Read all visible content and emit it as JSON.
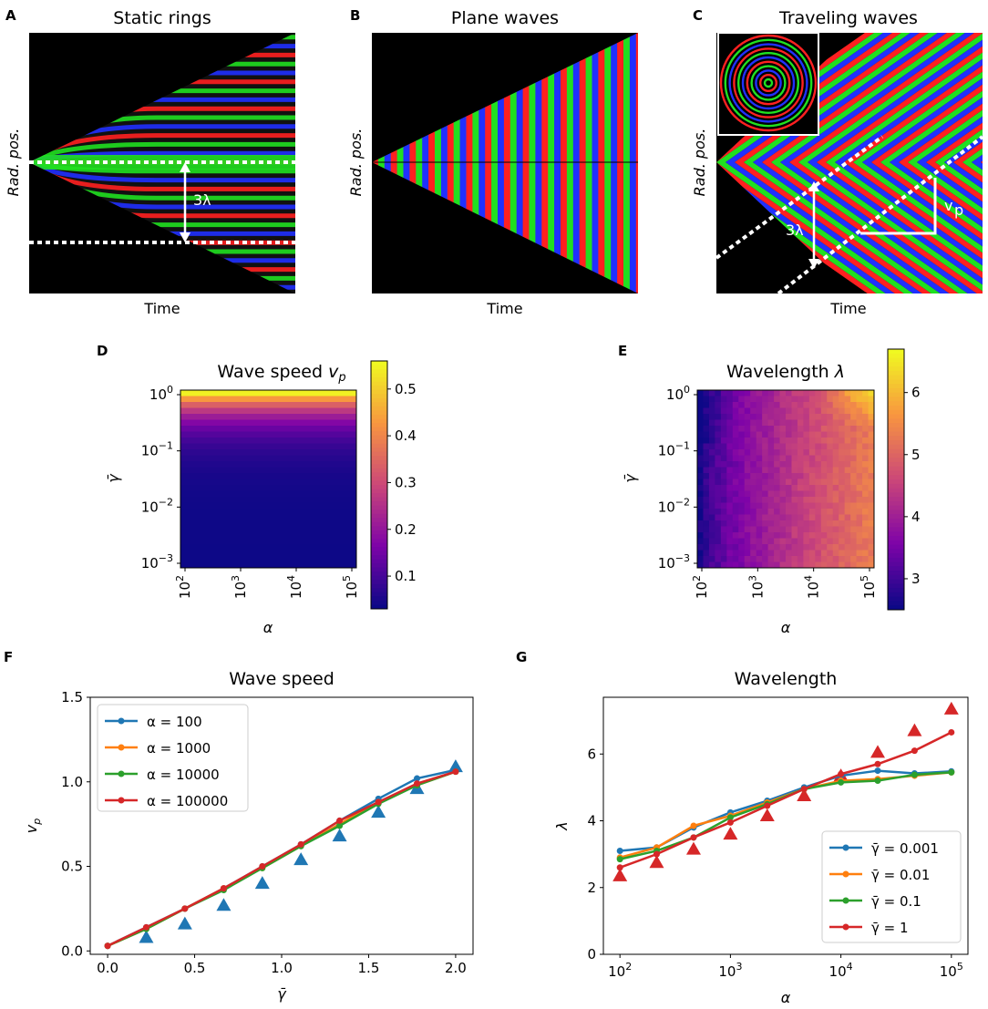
{
  "panel_letters": [
    "A",
    "B",
    "C",
    "D",
    "E",
    "F",
    "G"
  ],
  "colors": {
    "red": "#ff2020",
    "green": "#20e020",
    "blue": "#2030ff",
    "series": [
      "#1f77b4",
      "#ff7f0e",
      "#2ca02c",
      "#d62728"
    ],
    "triangle_f": "#1f77b4",
    "triangle_g": "#d62728"
  },
  "chart_data": [
    {
      "id": "A",
      "type": "heatmap",
      "title": "Static rings",
      "xlabel": "Time",
      "ylabel": "Rad. pos.",
      "annotations": [
        "3λ"
      ]
    },
    {
      "id": "B",
      "type": "heatmap",
      "title": "Plane waves",
      "xlabel": "Time",
      "ylabel": "Rad. pos."
    },
    {
      "id": "C",
      "type": "heatmap",
      "title": "Traveling waves",
      "xlabel": "Time",
      "ylabel": "Rad. pos.",
      "annotations": [
        "3λ",
        "v",
        "p"
      ]
    },
    {
      "id": "D",
      "type": "heatmap",
      "title_main": "Wave speed ",
      "title_sym": "v",
      "title_sub": "p",
      "xlabel": "α",
      "ylabel": "γ̄",
      "xticks": [
        {
          "b": "10",
          "e": "2"
        },
        {
          "b": "10",
          "e": "3"
        },
        {
          "b": "10",
          "e": "4"
        },
        {
          "b": "10",
          "e": "5"
        }
      ],
      "yticks": [
        {
          "b": "10",
          "e": "0"
        },
        {
          "b": "10",
          "e": "−1"
        },
        {
          "b": "10",
          "e": "−2"
        },
        {
          "b": "10",
          "e": "−3"
        }
      ],
      "colorbar_ticks": [
        "0.1",
        "0.2",
        "0.3",
        "0.4",
        "0.5"
      ],
      "colorbar_range": [
        0.03,
        0.56
      ]
    },
    {
      "id": "E",
      "type": "heatmap",
      "title_main": "Wavelength ",
      "title_sym": "λ",
      "xlabel": "α",
      "ylabel": "γ̄",
      "xticks": [
        {
          "b": "10",
          "e": "2"
        },
        {
          "b": "10",
          "e": "3"
        },
        {
          "b": "10",
          "e": "4"
        },
        {
          "b": "10",
          "e": "5"
        }
      ],
      "yticks": [
        {
          "b": "10",
          "e": "0"
        },
        {
          "b": "10",
          "e": "−1"
        },
        {
          "b": "10",
          "e": "−2"
        },
        {
          "b": "10",
          "e": "−3"
        }
      ],
      "colorbar_ticks": [
        "3",
        "4",
        "5",
        "6"
      ],
      "colorbar_range": [
        2.5,
        6.7
      ]
    },
    {
      "id": "F",
      "type": "line",
      "title": "Wave speed",
      "xlabel": "γ̄",
      "ylabel_sym": "v",
      "ylabel_sub": "p",
      "xlim": [
        -0.1,
        2.1
      ],
      "ylim": [
        -0.02,
        1.5
      ],
      "xticks": [
        "0.0",
        "0.5",
        "1.0",
        "1.5",
        "2.0"
      ],
      "yticks": [
        "0.0",
        "0.5",
        "1.0",
        "1.5"
      ],
      "x": [
        0.0,
        0.222,
        0.444,
        0.667,
        0.889,
        1.111,
        1.333,
        1.556,
        1.778,
        2.0
      ],
      "series": [
        {
          "name": "α = 100",
          "values": [
            0.03,
            0.14,
            0.25,
            0.37,
            0.5,
            0.63,
            0.77,
            0.9,
            1.02,
            1.07
          ]
        },
        {
          "name": "α = 1000",
          "values": [
            0.03,
            0.13,
            0.25,
            0.37,
            0.49,
            0.62,
            0.75,
            0.88,
            0.98,
            1.06
          ]
        },
        {
          "name": "α = 10000",
          "values": [
            0.03,
            0.13,
            0.25,
            0.36,
            0.49,
            0.62,
            0.74,
            0.87,
            0.98,
            1.06
          ]
        },
        {
          "name": "α = 100000",
          "values": [
            0.03,
            0.14,
            0.25,
            0.37,
            0.5,
            0.63,
            0.77,
            0.88,
            0.99,
            1.06
          ]
        }
      ],
      "triangles": {
        "x": [
          0.222,
          0.444,
          0.667,
          0.889,
          1.111,
          1.333,
          1.556,
          1.778,
          2.0
        ],
        "y": [
          0.08,
          0.16,
          0.27,
          0.4,
          0.54,
          0.68,
          0.82,
          0.96,
          1.09
        ]
      },
      "legend": "top-left"
    },
    {
      "id": "G",
      "type": "line",
      "title": "Wavelength",
      "xlabel": "α",
      "ylabel": "λ",
      "xlim_log10": [
        1.85,
        5.15
      ],
      "ylim": [
        0,
        7.7
      ],
      "xticks": [
        {
          "b": "10",
          "e": "2"
        },
        {
          "b": "10",
          "e": "3"
        },
        {
          "b": "10",
          "e": "4"
        },
        {
          "b": "10",
          "e": "5"
        }
      ],
      "yticks": [
        "0",
        "2",
        "4",
        "6"
      ],
      "x": [
        100,
        215,
        464,
        1000,
        2154,
        4642,
        10000,
        21544,
        46416,
        100000
      ],
      "series": [
        {
          "name": "γ̄ = 0.001",
          "values": [
            3.1,
            3.2,
            3.8,
            4.25,
            4.6,
            5.0,
            5.35,
            5.5,
            5.42,
            5.48
          ]
        },
        {
          "name": "γ̄ = 0.01",
          "values": [
            2.9,
            3.2,
            3.85,
            4.15,
            4.55,
            4.95,
            5.2,
            5.25,
            5.35,
            5.45
          ]
        },
        {
          "name": "γ̄ = 0.1",
          "values": [
            2.85,
            3.1,
            3.5,
            4.1,
            4.5,
            4.95,
            5.15,
            5.2,
            5.38,
            5.45
          ]
        },
        {
          "name": "γ̄ = 1",
          "values": [
            2.6,
            3.0,
            3.5,
            3.95,
            4.45,
            4.95,
            5.4,
            5.7,
            6.1,
            6.65
          ]
        }
      ],
      "triangles": {
        "x": [
          100,
          215,
          464,
          1000,
          2154,
          4642,
          10000,
          21544,
          46416,
          100000
        ],
        "y": [
          2.35,
          2.75,
          3.15,
          3.6,
          4.15,
          4.75,
          5.35,
          6.05,
          6.7,
          7.35
        ]
      },
      "legend": "bottom-right"
    }
  ]
}
